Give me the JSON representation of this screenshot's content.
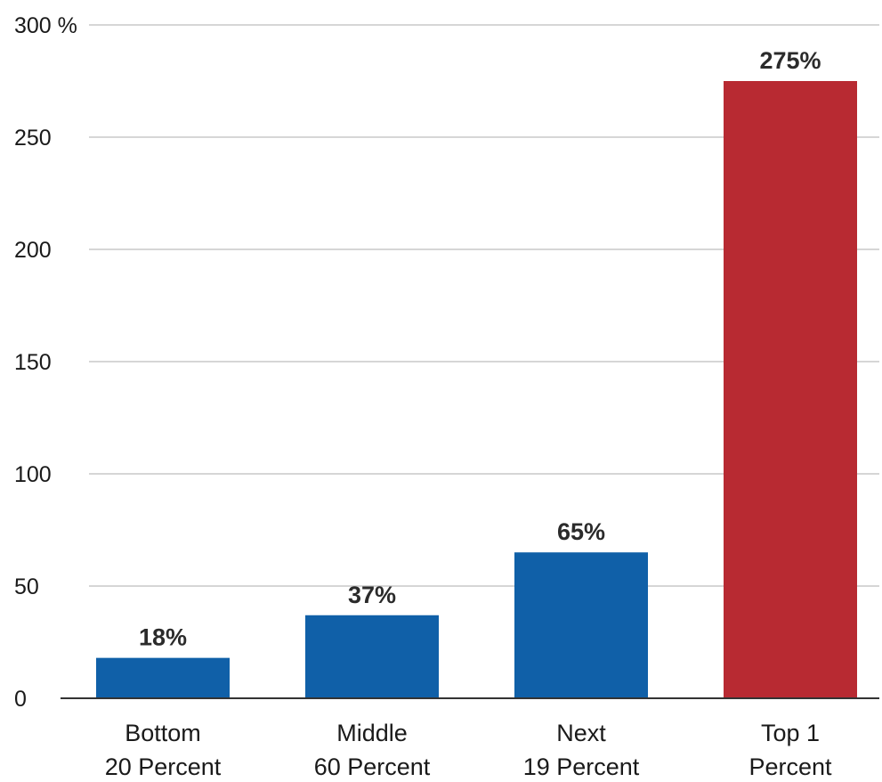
{
  "chart_data": {
    "type": "bar",
    "title": "",
    "xlabel": "",
    "ylabel": "",
    "ylim": [
      0,
      300
    ],
    "yticks": [
      0,
      50,
      100,
      150,
      200,
      250,
      300
    ],
    "ytick_labels": [
      "0",
      "50",
      "100",
      "150",
      "200",
      "250",
      "300 %"
    ],
    "grid": true,
    "categories": [
      [
        "Bottom",
        "20 Percent"
      ],
      [
        "Middle",
        "60 Percent"
      ],
      [
        "Next",
        "19 Percent"
      ],
      [
        "Top 1",
        "Percent"
      ]
    ],
    "values": [
      18,
      37,
      65,
      275
    ],
    "data_labels": [
      "18%",
      "37%",
      "65%",
      "275%"
    ],
    "colors": [
      "#1060a8",
      "#1060a8",
      "#1060a8",
      "#b82a32"
    ]
  }
}
